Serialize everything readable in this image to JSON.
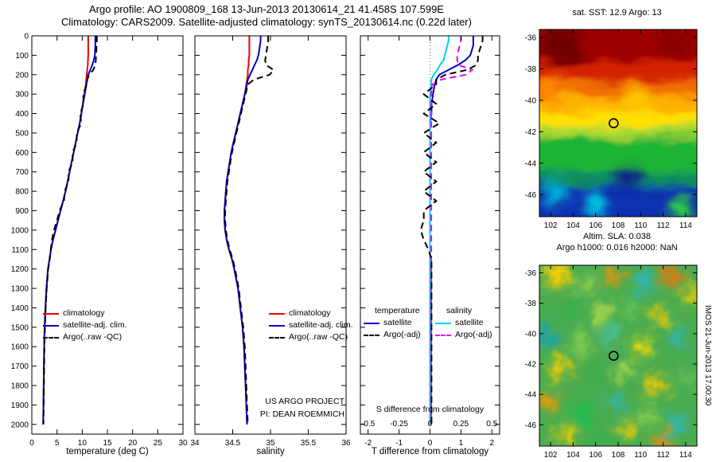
{
  "header": {
    "line1": "Argo profile: AO 1900809_168 13-Jun-2013 20130614_21 41.458S 107.599E",
    "line2": "Climatology: CARS2009. Satellite-adjusted climatology: synTS_20130614.nc (0.22d later)"
  },
  "chart_data": {
    "type": "line",
    "depth_range": [
      0,
      2050
    ],
    "depth_ticks": [
      0,
      100,
      200,
      300,
      400,
      500,
      600,
      700,
      800,
      900,
      1000,
      1100,
      1200,
      1300,
      1400,
      1500,
      1600,
      1700,
      1800,
      1900,
      2000
    ],
    "profiles": {
      "depth": [
        0,
        25,
        50,
        75,
        100,
        125,
        150,
        175,
        200,
        225,
        250,
        300,
        350,
        400,
        450,
        500,
        550,
        600,
        650,
        700,
        750,
        800,
        850,
        900,
        950,
        1000,
        1050,
        1100,
        1150,
        1200,
        1300,
        1400,
        1500,
        1600,
        1700,
        1800,
        1900,
        2000
      ],
      "temperature": {
        "climatology": [
          11.2,
          11.2,
          11.2,
          11.2,
          11.2,
          11.15,
          11.1,
          11.0,
          10.9,
          10.8,
          10.7,
          10.4,
          10.1,
          9.8,
          9.5,
          9.1,
          8.7,
          8.3,
          7.9,
          7.5,
          7.1,
          6.7,
          6.2,
          5.7,
          5.2,
          4.7,
          4.2,
          3.8,
          3.5,
          3.2,
          2.9,
          2.7,
          2.55,
          2.45,
          2.4,
          2.35,
          2.3,
          2.25
        ],
        "satellite_adj": [
          12.6,
          12.6,
          12.6,
          12.55,
          12.5,
          12.3,
          12.0,
          11.6,
          11.2,
          11.0,
          10.85,
          10.5,
          10.15,
          9.85,
          9.5,
          9.1,
          8.7,
          8.3,
          7.9,
          7.5,
          7.1,
          6.7,
          6.2,
          5.7,
          5.2,
          4.7,
          4.2,
          3.8,
          3.5,
          3.2,
          2.9,
          2.7,
          2.55,
          2.45,
          2.4,
          2.35,
          2.3,
          2.25
        ],
        "argo_raw": [
          12.9,
          12.9,
          12.85,
          12.8,
          12.75,
          12.7,
          12.6,
          12.2,
          11.4,
          11.0,
          10.9,
          10.2,
          10.3,
          9.6,
          9.8,
          8.9,
          8.9,
          8.1,
          8.1,
          7.3,
          7.3,
          6.5,
          6.4,
          5.5,
          5.0,
          4.4,
          4.0,
          3.75,
          3.55,
          3.25,
          2.95,
          2.75,
          2.6,
          2.5,
          2.45,
          2.4,
          2.35,
          2.3
        ]
      },
      "salinity": {
        "climatology": [
          34.72,
          34.72,
          34.72,
          34.72,
          34.72,
          34.71,
          34.71,
          34.7,
          34.7,
          34.69,
          34.68,
          34.66,
          34.63,
          34.6,
          34.57,
          34.54,
          34.51,
          34.48,
          34.46,
          34.44,
          34.42,
          34.41,
          34.4,
          34.39,
          34.39,
          34.4,
          34.42,
          34.45,
          34.49,
          34.52,
          34.57,
          34.6,
          34.63,
          34.65,
          34.66,
          34.67,
          34.68,
          34.69
        ],
        "satellite_adj": [
          34.87,
          34.87,
          34.86,
          34.85,
          34.84,
          34.82,
          34.79,
          34.76,
          34.73,
          34.7,
          34.69,
          34.66,
          34.63,
          34.6,
          34.57,
          34.54,
          34.51,
          34.48,
          34.46,
          34.44,
          34.42,
          34.41,
          34.4,
          34.39,
          34.39,
          34.4,
          34.42,
          34.45,
          34.49,
          34.52,
          34.57,
          34.6,
          34.63,
          34.65,
          34.66,
          34.67,
          34.68,
          34.69
        ],
        "argo_raw": [
          34.97,
          34.97,
          34.96,
          34.95,
          34.94,
          34.93,
          34.94,
          35.04,
          34.99,
          34.78,
          34.7,
          34.67,
          34.64,
          34.61,
          34.58,
          34.55,
          34.52,
          34.49,
          34.47,
          34.45,
          34.43,
          34.42,
          34.41,
          34.4,
          34.4,
          34.41,
          34.43,
          34.46,
          34.5,
          34.53,
          34.58,
          34.61,
          34.64,
          34.66,
          34.67,
          34.68,
          34.69,
          34.7
        ]
      }
    },
    "temperature_axis": {
      "label": "temperature (deg C)",
      "ticks": [
        0,
        5,
        10,
        15,
        20,
        25,
        30
      ],
      "range": [
        0,
        30
      ]
    },
    "salinity_axis": {
      "label": "salinity",
      "ticks": [
        34,
        34.5,
        35,
        35.5,
        36
      ],
      "range": [
        34,
        36
      ]
    },
    "difference_axis": {
      "label": "T difference from climatology",
      "s_label": "S difference from climatology",
      "ticks": [
        -2,
        -1,
        0,
        1,
        2
      ],
      "range": [
        -2.25,
        2.25
      ],
      "s_ticks": [
        -0.5,
        -0.25,
        0,
        0.25,
        0.5
      ],
      "s_to_t_scale": 4
    },
    "annotations": {
      "project": "US ARGO PROJECT",
      "pi": "PI: DEAN ROEMMICH"
    },
    "legends": {
      "profile": [
        {
          "label": "climatology",
          "color": "#f00000",
          "dash": false
        },
        {
          "label": "satellite-adj. clim.",
          "color": "#0000d0",
          "dash": false
        },
        {
          "label": "Argo(..raw -QC)",
          "color": "#000000",
          "dash": true
        }
      ],
      "difference": {
        "temperature_header": "temperature",
        "salinity_header": "salinity",
        "temperature_entries": [
          {
            "label": "satellite",
            "color": "#0000d0",
            "dash": false
          },
          {
            "label": "Argo(-adj)",
            "color": "#000000",
            "dash": true
          }
        ],
        "salinity_entries": [
          {
            "label": "satellite",
            "color": "#00d0f0",
            "dash": false
          },
          {
            "label": "Argo(-adj)",
            "color": "#f000f0",
            "dash": true
          }
        ]
      }
    },
    "sst_map": {
      "title": "sat. SST: 12.9 Argo: 13",
      "lon_ticks": [
        102,
        104,
        106,
        108,
        110,
        112,
        114
      ],
      "lat_ticks": [
        -36,
        -38,
        -40,
        -42,
        -44,
        -46
      ],
      "lon_range": [
        101,
        115
      ],
      "lat_range": [
        -35.5,
        -47.4
      ],
      "marker": {
        "lon": 107.6,
        "lat": -41.46
      },
      "bands": [
        {
          "from": -35.5,
          "to": -37.6,
          "color": "#9e0000"
        },
        {
          "from": -37.6,
          "to": -38.8,
          "color": "#d42400"
        },
        {
          "from": -38.8,
          "to": -39.8,
          "color": "#f07000"
        },
        {
          "from": -39.8,
          "to": -40.7,
          "color": "#ffb300"
        },
        {
          "from": -40.7,
          "to": -41.7,
          "color": "#ffe000"
        },
        {
          "from": -41.7,
          "to": -42.4,
          "color": "#a8d830"
        },
        {
          "from": -42.4,
          "to": -44.6,
          "color": "#1eb434"
        },
        {
          "from": -44.6,
          "to": -45.4,
          "color": "#0d8a60"
        },
        {
          "from": -45.4,
          "to": -47.4,
          "color": "#1030b0"
        }
      ],
      "patches": [
        {
          "lon": 103.0,
          "lat": -36.3,
          "r": 26,
          "color": "#700000"
        },
        {
          "lon": 112.8,
          "lat": -36.2,
          "r": 20,
          "color": "#8a0000"
        },
        {
          "lon": 101.9,
          "lat": -39.2,
          "r": 16,
          "color": "#ff8800"
        },
        {
          "lon": 109.5,
          "lat": -39.9,
          "r": 18,
          "color": "#ffc400"
        },
        {
          "lon": 102.4,
          "lat": -45.9,
          "r": 15,
          "color": "#00b4d8"
        },
        {
          "lon": 106.0,
          "lat": -46.5,
          "r": 15,
          "color": "#00c8e0"
        },
        {
          "lon": 109.0,
          "lat": -44.9,
          "r": 14,
          "color": "#0a1a86"
        },
        {
          "lon": 113.6,
          "lat": -46.9,
          "r": 16,
          "color": "#2fc846"
        }
      ]
    },
    "sla_map": {
      "title1": "Altim. SLA: 0.038",
      "title2": "Argo h1000: 0.016 h2000: NaN",
      "side_label": "IMOS 21-Jun-2013 17.00:30",
      "lon_ticks": [
        102,
        104,
        106,
        108,
        110,
        112,
        114
      ],
      "lat_ticks": [
        -36,
        -38,
        -40,
        -42,
        -44,
        -46
      ],
      "lon_range": [
        101,
        115
      ],
      "lat_range": [
        -35.5,
        -47.4
      ],
      "marker": {
        "lon": 107.6,
        "lat": -41.46
      },
      "base_color": "#4aac50",
      "blobs": [
        {
          "lon": 102.6,
          "lat": -36.2,
          "r": 15,
          "color": "#ffd000"
        },
        {
          "lon": 105.2,
          "lat": -36.8,
          "r": 12,
          "color": "#8fd14f"
        },
        {
          "lon": 107.6,
          "lat": -36.2,
          "r": 10,
          "color": "#ff9000"
        },
        {
          "lon": 110.3,
          "lat": -36.6,
          "r": 12,
          "color": "#2ab6c8"
        },
        {
          "lon": 112.9,
          "lat": -36.3,
          "r": 11,
          "color": "#ff7000"
        },
        {
          "lon": 114.5,
          "lat": -37.5,
          "r": 10,
          "color": "#ffd000"
        },
        {
          "lon": 103.8,
          "lat": -38.4,
          "r": 13,
          "color": "#36b04a"
        },
        {
          "lon": 106.7,
          "lat": -38.7,
          "r": 10,
          "color": "#bfe04a"
        },
        {
          "lon": 109.2,
          "lat": -38.3,
          "r": 11,
          "color": "#66c455"
        },
        {
          "lon": 111.8,
          "lat": -38.9,
          "r": 10,
          "color": "#ffd000"
        },
        {
          "lon": 101.6,
          "lat": -40.1,
          "r": 12,
          "color": "#1fa0b4"
        },
        {
          "lon": 104.6,
          "lat": -40.6,
          "r": 11,
          "color": "#8fd14f"
        },
        {
          "lon": 107.2,
          "lat": -40.2,
          "r": 9,
          "color": "#4cc8c0"
        },
        {
          "lon": 110.0,
          "lat": -40.9,
          "r": 12,
          "color": "#ffe000"
        },
        {
          "lon": 113.4,
          "lat": -40.4,
          "r": 10,
          "color": "#2ab6c8"
        },
        {
          "lon": 102.9,
          "lat": -42.3,
          "r": 13,
          "color": "#ffd000"
        },
        {
          "lon": 105.9,
          "lat": -42.9,
          "r": 10,
          "color": "#36b04a"
        },
        {
          "lon": 108.6,
          "lat": -42.5,
          "r": 10,
          "color": "#bfe04a"
        },
        {
          "lon": 111.4,
          "lat": -43.4,
          "r": 12,
          "color": "#ffca00"
        },
        {
          "lon": 114.2,
          "lat": -42.9,
          "r": 9,
          "color": "#66c455"
        },
        {
          "lon": 101.8,
          "lat": -44.6,
          "r": 12,
          "color": "#ff9800"
        },
        {
          "lon": 104.9,
          "lat": -45.2,
          "r": 13,
          "color": "#17c24e"
        },
        {
          "lon": 107.8,
          "lat": -44.6,
          "r": 9,
          "color": "#2ab6c8"
        },
        {
          "lon": 110.6,
          "lat": -45.4,
          "r": 11,
          "color": "#8fd14f"
        },
        {
          "lon": 113.2,
          "lat": -45.9,
          "r": 11,
          "color": "#2ab6c8"
        },
        {
          "lon": 103.4,
          "lat": -46.8,
          "r": 11,
          "color": "#ffd000"
        },
        {
          "lon": 106.6,
          "lat": -46.9,
          "r": 10,
          "color": "#36b04a"
        },
        {
          "lon": 108.9,
          "lat": -46.4,
          "r": 10,
          "color": "#ffd000"
        },
        {
          "lon": 111.9,
          "lat": -47.1,
          "r": 10,
          "color": "#ff8800"
        }
      ]
    }
  }
}
